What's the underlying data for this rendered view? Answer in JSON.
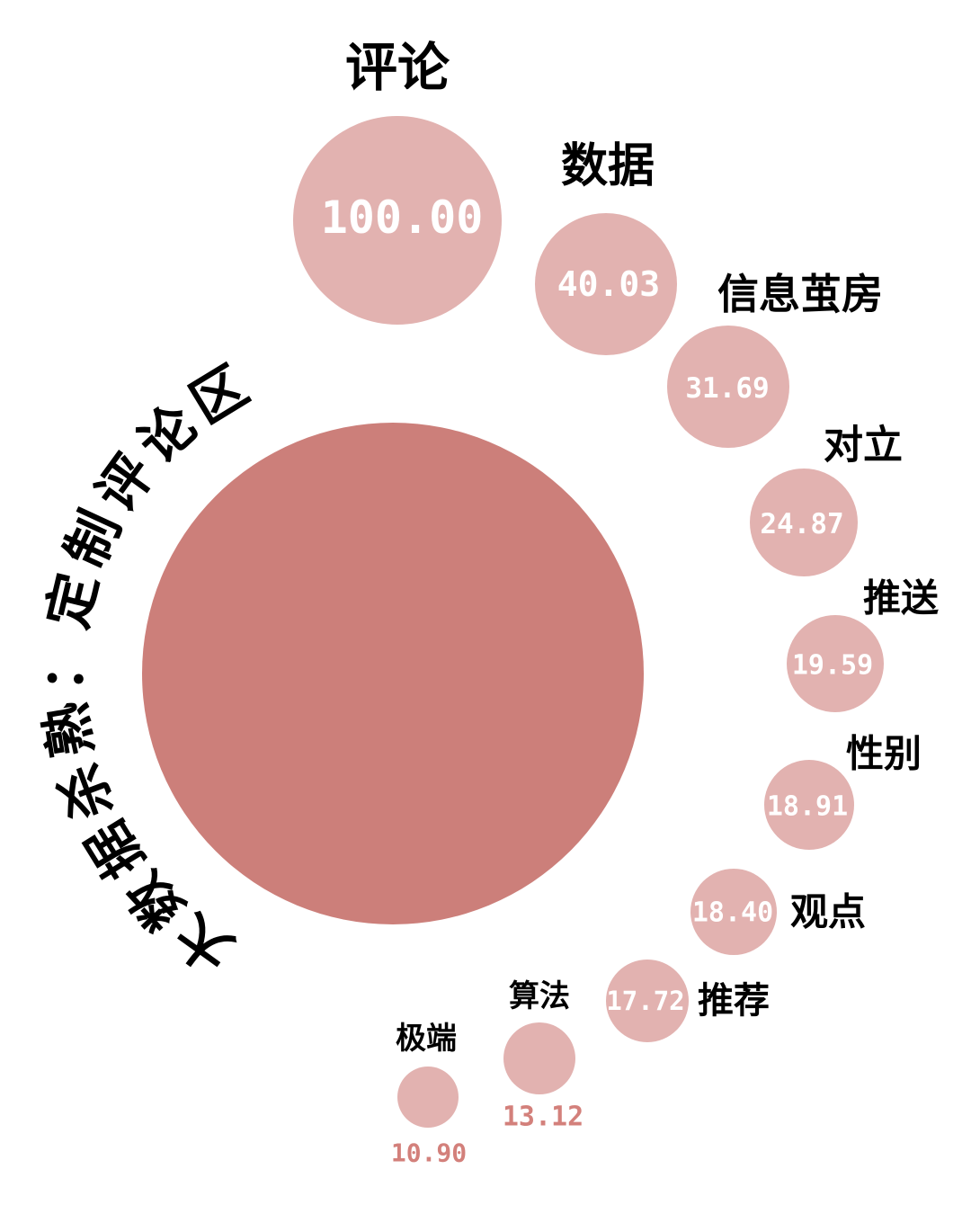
{
  "chart_data": {
    "type": "bubble",
    "title": "大数据杀熟：定制评论区",
    "colors": {
      "main": "#cc7f7a",
      "bubble": "#e2b2b0",
      "value_outside": "#d3807b",
      "value_inside": "#ffffff"
    },
    "series": [
      {
        "name": "评论",
        "value": 100.0,
        "display": "100.00"
      },
      {
        "name": "数据",
        "value": 40.03,
        "display": "40.03"
      },
      {
        "name": "信息茧房",
        "value": 31.69,
        "display": "31.69"
      },
      {
        "name": "对立",
        "value": 24.87,
        "display": "24.87"
      },
      {
        "name": "推送",
        "value": 19.59,
        "display": "19.59"
      },
      {
        "name": "性别",
        "value": 18.91,
        "display": "18.91"
      },
      {
        "name": "观点",
        "value": 18.4,
        "display": "18.40"
      },
      {
        "name": "推荐",
        "value": 17.72,
        "display": "17.72"
      },
      {
        "name": "算法",
        "value": 13.12,
        "display": "13.12"
      },
      {
        "name": "极端",
        "value": 10.9,
        "display": "10.90"
      }
    ]
  }
}
